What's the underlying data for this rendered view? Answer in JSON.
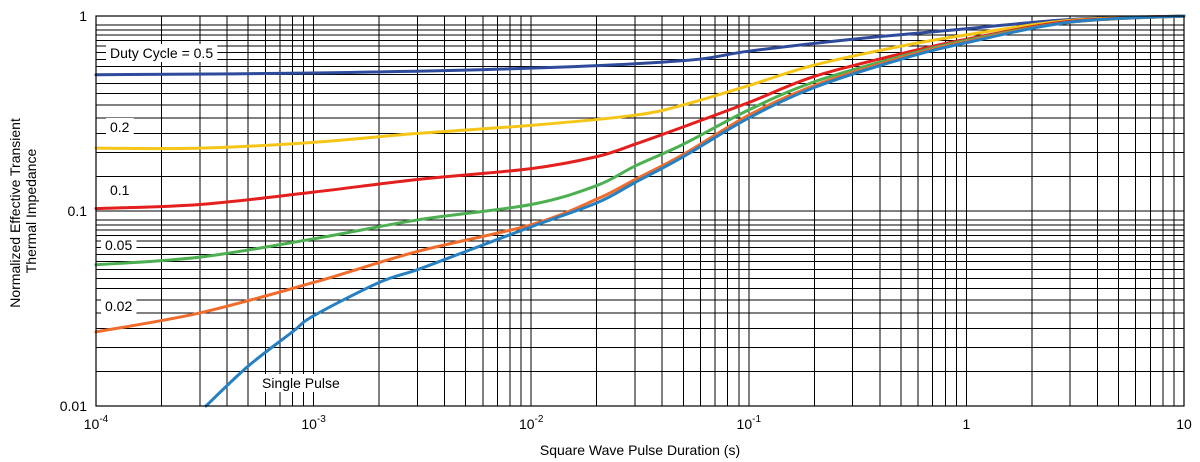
{
  "chart_data": {
    "type": "line",
    "title": "",
    "xlabel": "Square Wave Pulse Duration (s)",
    "ylabel_lines": [
      "Normalized Effective Transient",
      "Thermal Impedance"
    ],
    "x_scale": "log",
    "y_scale": "log",
    "xlim": [
      0.0001,
      10
    ],
    "ylim": [
      0.01,
      1
    ],
    "grid": true,
    "x_ticks": [
      {
        "value": 0.0001,
        "base": "10",
        "exp": "-4"
      },
      {
        "value": 0.001,
        "base": "10",
        "exp": "-3"
      },
      {
        "value": 0.01,
        "base": "10",
        "exp": "-2"
      },
      {
        "value": 0.1,
        "base": "10",
        "exp": "-1"
      },
      {
        "value": 1,
        "base": "1",
        "exp": ""
      },
      {
        "value": 10,
        "base": "10",
        "exp": ""
      }
    ],
    "y_ticks": [
      {
        "value": 0.01,
        "label": "0.01"
      },
      {
        "value": 0.1,
        "label": "0.1"
      },
      {
        "value": 1,
        "label": "1"
      }
    ],
    "series": [
      {
        "name": "Duty Cycle = 0.5",
        "color": "#2E4A9A",
        "points": [
          [
            0.0001,
            0.5
          ],
          [
            0.001,
            0.51
          ],
          [
            0.01,
            0.54
          ],
          [
            0.05,
            0.59
          ],
          [
            0.1,
            0.66
          ],
          [
            0.3,
            0.76
          ],
          [
            1,
            0.86
          ],
          [
            3,
            0.96
          ],
          [
            10,
            1.0
          ]
        ]
      },
      {
        "name": "0.2",
        "color": "#F5C518",
        "points": [
          [
            0.0001,
            0.21
          ],
          [
            0.0003,
            0.21
          ],
          [
            0.001,
            0.225
          ],
          [
            0.003,
            0.25
          ],
          [
            0.01,
            0.275
          ],
          [
            0.03,
            0.31
          ],
          [
            0.05,
            0.35
          ],
          [
            0.1,
            0.44
          ],
          [
            0.2,
            0.56
          ],
          [
            0.5,
            0.7
          ],
          [
            1,
            0.8
          ],
          [
            3,
            0.95
          ],
          [
            10,
            1.0
          ]
        ]
      },
      {
        "name": "0.1",
        "color": "#E3201E",
        "points": [
          [
            0.0001,
            0.103
          ],
          [
            0.0003,
            0.108
          ],
          [
            0.001,
            0.125
          ],
          [
            0.003,
            0.145
          ],
          [
            0.01,
            0.165
          ],
          [
            0.02,
            0.19
          ],
          [
            0.03,
            0.22
          ],
          [
            0.05,
            0.27
          ],
          [
            0.1,
            0.36
          ],
          [
            0.2,
            0.49
          ],
          [
            0.5,
            0.64
          ],
          [
            1,
            0.76
          ],
          [
            3,
            0.94
          ],
          [
            10,
            1.0
          ]
        ]
      },
      {
        "name": "0.05",
        "color": "#4CAF50",
        "points": [
          [
            0.0001,
            0.053
          ],
          [
            0.0003,
            0.058
          ],
          [
            0.001,
            0.072
          ],
          [
            0.003,
            0.09
          ],
          [
            0.01,
            0.108
          ],
          [
            0.02,
            0.135
          ],
          [
            0.03,
            0.17
          ],
          [
            0.05,
            0.22
          ],
          [
            0.1,
            0.33
          ],
          [
            0.2,
            0.46
          ],
          [
            0.5,
            0.62
          ],
          [
            1,
            0.75
          ],
          [
            3,
            0.93
          ],
          [
            10,
            1.0
          ]
        ]
      },
      {
        "name": "0.02",
        "color": "#EF6C2C",
        "points": [
          [
            0.0001,
            0.024
          ],
          [
            0.0003,
            0.03
          ],
          [
            0.001,
            0.043
          ],
          [
            0.003,
            0.062
          ],
          [
            0.01,
            0.085
          ],
          [
            0.02,
            0.115
          ],
          [
            0.03,
            0.145
          ],
          [
            0.05,
            0.195
          ],
          [
            0.1,
            0.31
          ],
          [
            0.2,
            0.44
          ],
          [
            0.5,
            0.61
          ],
          [
            1,
            0.74
          ],
          [
            3,
            0.93
          ],
          [
            10,
            1.0
          ]
        ]
      },
      {
        "name": "Single Pulse",
        "color": "#2680C2",
        "points": [
          [
            0.00032,
            0.01
          ],
          [
            0.0005,
            0.016
          ],
          [
            0.0008,
            0.024
          ],
          [
            0.001,
            0.029
          ],
          [
            0.002,
            0.043
          ],
          [
            0.003,
            0.05
          ],
          [
            0.005,
            0.062
          ],
          [
            0.01,
            0.083
          ],
          [
            0.02,
            0.11
          ],
          [
            0.03,
            0.14
          ],
          [
            0.05,
            0.19
          ],
          [
            0.1,
            0.3
          ],
          [
            0.2,
            0.43
          ],
          [
            0.5,
            0.6
          ],
          [
            1,
            0.73
          ],
          [
            3,
            0.93
          ],
          [
            10,
            1.0
          ]
        ]
      }
    ]
  }
}
